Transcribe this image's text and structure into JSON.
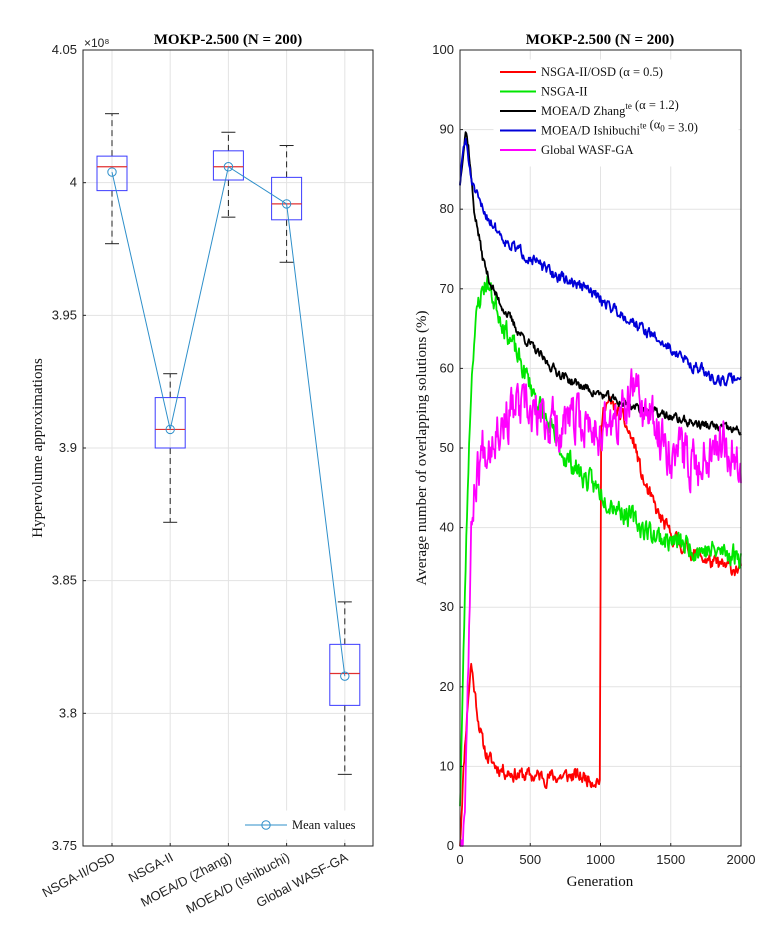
{
  "chart_data": [
    {
      "type": "box",
      "title": "MOKP-2.500 (N = 200)",
      "ylabel": "Hypervolume approximations",
      "xlabel": "",
      "y_exponent_label": "×10⁸",
      "y_multiplier": 100000000,
      "ylim": [
        3.75,
        4.05
      ],
      "yticks": [
        3.75,
        3.8,
        3.85,
        3.9,
        3.95,
        4,
        4.05
      ],
      "ytick_labels": [
        "3.75",
        "3.8",
        "3.85",
        "3.9",
        "3.95",
        "4",
        "4.05"
      ],
      "grid": true,
      "legend_position": "bottom-right",
      "categories": [
        "NSGA-II/OSD",
        "NSGA-II",
        "MOEA/D (Zhang)",
        "MOEA/D (Ishibuchi)",
        "Global WASF-GA"
      ],
      "boxes": [
        {
          "whisker_low": 3.977,
          "q1": 3.997,
          "median": 4.006,
          "q3": 4.01,
          "whisker_high": 4.026,
          "mean": 4.004
        },
        {
          "whisker_low": 3.872,
          "q1": 3.9,
          "median": 3.907,
          "q3": 3.919,
          "whisker_high": 3.928,
          "mean": 3.907
        },
        {
          "whisker_low": 3.987,
          "q1": 4.001,
          "median": 4.006,
          "q3": 4.012,
          "whisker_high": 4.019,
          "mean": 4.006
        },
        {
          "whisker_low": 3.97,
          "q1": 3.986,
          "median": 3.992,
          "q3": 4.002,
          "whisker_high": 4.014,
          "mean": 3.992
        },
        {
          "whisker_low": 3.777,
          "q1": 3.803,
          "median": 3.815,
          "q3": 3.826,
          "whisker_high": 3.842,
          "mean": 3.814
        }
      ],
      "mean_series_name": "Mean values",
      "colors": {
        "box": "#3b3bff",
        "median": "#e03030",
        "mean": "#2e8fca",
        "whisker": "#222222"
      }
    },
    {
      "type": "line",
      "title": "MOKP-2.500 (N = 200)",
      "xlabel": "Generation",
      "ylabel": "Average number of overlapping solutions (%)",
      "xlim": [
        0,
        2000
      ],
      "ylim": [
        0,
        100
      ],
      "xticks": [
        0,
        500,
        1000,
        1500,
        2000
      ],
      "yticks": [
        0,
        10,
        20,
        30,
        40,
        50,
        60,
        70,
        80,
        90,
        100
      ],
      "grid": true,
      "legend_position": "top-right",
      "series": [
        {
          "name": "NSGA-II/OSD (α = 0.5)",
          "legend_parts": [
            "NSGA-II/OSD (α = 0.5)"
          ],
          "color": "#ff0000",
          "noise": 0.8,
          "seed": 11,
          "x": [
            0,
            20,
            40,
            60,
            80,
            100,
            130,
            160,
            200,
            260,
            320,
            400,
            500,
            600,
            700,
            800,
            900,
            995,
            1000,
            1005,
            1030,
            1100,
            1150,
            1200,
            1250,
            1300,
            1400,
            1500,
            1600,
            1700,
            1800,
            1900,
            2000
          ],
          "y": [
            0,
            8,
            14,
            19,
            23,
            20,
            16,
            13,
            11,
            10,
            9.5,
            9,
            8.8,
            8.7,
            8.7,
            8.8,
            8.6,
            8.3,
            30,
            52,
            56,
            55,
            54,
            52,
            50,
            46,
            42,
            39,
            37.5,
            36.5,
            35.5,
            35,
            34.8
          ]
        },
        {
          "name": "NSGA-II",
          "legend_parts": [
            "NSGA-II"
          ],
          "color": "#00e600",
          "noise": 1.2,
          "seed": 23,
          "x": [
            0,
            20,
            40,
            60,
            80,
            100,
            130,
            160,
            190,
            230,
            280,
            350,
            420,
            500,
            600,
            700,
            800,
            900,
            1000,
            1100,
            1200,
            1300,
            1400,
            1500,
            1600,
            1700,
            1800,
            1900,
            2000
          ],
          "y": [
            5,
            20,
            35,
            48,
            58,
            64,
            68,
            70,
            71,
            69,
            67,
            64,
            61,
            58,
            54,
            50,
            48,
            46,
            44.5,
            43,
            41.5,
            40,
            39,
            38.3,
            37.8,
            37.3,
            37,
            36.8,
            36.6
          ]
        },
        {
          "name": "MOEA/D Zhang te (α = 1.2)",
          "legend_parts": [
            "MOEA/D Zhang",
            "te",
            " (α = 1.2)"
          ],
          "color": "#000000",
          "noise": 0.5,
          "seed": 37,
          "x": [
            0,
            20,
            40,
            60,
            80,
            100,
            130,
            160,
            200,
            260,
            330,
            400,
            500,
            600,
            700,
            800,
            900,
            1000,
            1100,
            1200,
            1300,
            1400,
            1500,
            1600,
            1700,
            1800,
            1900,
            2000
          ],
          "y": [
            83,
            87,
            90,
            88,
            84,
            80,
            77,
            74,
            71.5,
            69,
            67,
            65,
            63,
            61,
            59.5,
            58.3,
            57.5,
            56.7,
            56,
            55.4,
            54.9,
            54.4,
            53.9,
            53.4,
            53,
            52.7,
            52.4,
            52.1
          ]
        },
        {
          "name": "MOEA/D Ishibuchi te (α₀ = 3.0)",
          "legend_parts": [
            "MOEA/D Ishibuchi",
            "te",
            " (α",
            "0",
            " = 3.0)"
          ],
          "color": "#0000d8",
          "noise": 0.6,
          "seed": 51,
          "x": [
            0,
            20,
            40,
            60,
            80,
            100,
            130,
            160,
            200,
            260,
            330,
            400,
            500,
            600,
            700,
            800,
            900,
            1000,
            1100,
            1200,
            1300,
            1400,
            1500,
            1600,
            1700,
            1800,
            1900,
            2000
          ],
          "y": [
            83,
            87,
            89,
            86,
            84,
            82.5,
            81,
            80,
            79,
            77.5,
            76,
            75,
            74,
            72.5,
            71.5,
            70.8,
            70,
            68.7,
            67.5,
            66.3,
            65,
            63.7,
            62.5,
            61,
            60,
            58.8,
            58.5,
            59
          ]
        },
        {
          "name": "Global WASF-GA",
          "legend_parts": [
            "Global WASF-GA"
          ],
          "color": "#ff00ff",
          "noise": 2.6,
          "seed": 67,
          "x": [
            0,
            20,
            40,
            60,
            80,
            100,
            130,
            160,
            200,
            260,
            330,
            400,
            500,
            600,
            700,
            800,
            900,
            1000,
            1100,
            1200,
            1250,
            1300,
            1400,
            1500,
            1600,
            1700,
            1800,
            1900,
            2000
          ],
          "y": [
            0,
            1,
            10,
            25,
            38,
            45,
            48,
            50,
            51,
            53,
            54,
            55,
            54,
            53.5,
            53,
            53,
            53,
            52.5,
            53,
            55,
            58,
            55,
            52,
            50,
            49,
            48,
            51,
            51,
            48
          ]
        }
      ]
    }
  ]
}
